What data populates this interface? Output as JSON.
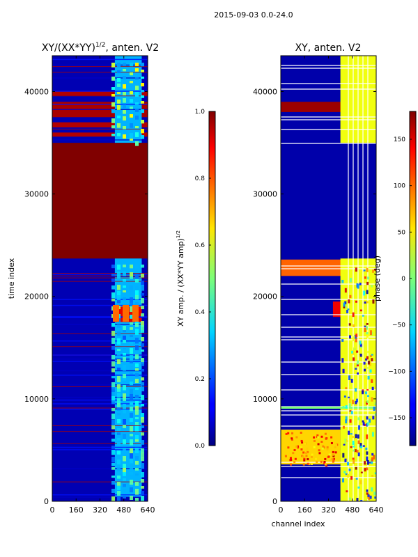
{
  "suptitle": "2015-09-03 0.0-24.0",
  "chart_data": [
    {
      "type": "heatmap",
      "title_main": "XY/(XX*YY)",
      "title_exp": "1/2",
      "title_tail": ", anten. V2",
      "ylabel": "time index",
      "xlabel": "",
      "xlim": [
        0,
        640
      ],
      "ylim": [
        0,
        43500
      ],
      "xticks": [
        "0",
        "160",
        "320",
        "480",
        "640"
      ],
      "yticks": [
        "0",
        "10000",
        "20000",
        "30000",
        "40000"
      ],
      "xtick_values": [
        0,
        160,
        320,
        480,
        640
      ],
      "ytick_values": [
        0,
        10000,
        20000,
        30000,
        40000
      ],
      "colorbar": {
        "label_main": "XY amp. / (XX*YY amp)",
        "label_exp": "1/2",
        "range": [
          0.0,
          1.0
        ],
        "ticks": [
          "0.0",
          "0.2",
          "0.4",
          "0.6",
          "0.8",
          "1.0"
        ],
        "tick_values": [
          0.0,
          0.2,
          0.4,
          0.6,
          0.8,
          1.0
        ]
      },
      "regions": [
        {
          "t0": 0,
          "t1": 23700,
          "c0": 0,
          "c1": 640,
          "value": 0.05
        },
        {
          "t0": 23700,
          "t1": 35000,
          "c0": 0,
          "c1": 640,
          "value": 1.0
        },
        {
          "t0": 35000,
          "t1": 43500,
          "c0": 0,
          "c1": 640,
          "value": 0.05
        },
        {
          "t0": 37500,
          "t1": 39000,
          "c0": 0,
          "c1": 640,
          "value": 0.96
        },
        {
          "t0": 36500,
          "t1": 37000,
          "c0": 0,
          "c1": 640,
          "value": 0.95
        },
        {
          "t0": 35600,
          "t1": 36000,
          "c0": 0,
          "c1": 640,
          "value": 0.95
        },
        {
          "t0": 39600,
          "t1": 40000,
          "c0": 0,
          "c1": 640,
          "value": 0.95
        },
        {
          "t0": 400,
          "t1": 23700,
          "c0": 420,
          "c1": 600,
          "value": 0.3
        },
        {
          "t0": 35000,
          "t1": 43500,
          "c0": 420,
          "c1": 600,
          "value": 0.3
        },
        {
          "t0": 17500,
          "t1": 19000,
          "c0": 420,
          "c1": 600,
          "value": 0.9
        }
      ]
    },
    {
      "type": "heatmap",
      "title": "XY, anten. V2",
      "ylabel": "",
      "xlabel": "channel index",
      "xlim": [
        0,
        640
      ],
      "ylim": [
        0,
        43500
      ],
      "xticks": [
        "0",
        "160",
        "320",
        "480",
        "640"
      ],
      "yticks": [
        "0",
        "10000",
        "20000",
        "30000",
        "40000"
      ],
      "xtick_values": [
        0,
        160,
        320,
        480,
        640
      ],
      "ytick_values": [
        0,
        10000,
        20000,
        30000,
        40000
      ],
      "colorbar": {
        "label": "phase (deg)",
        "range": [
          -180,
          180
        ],
        "ticks": [
          "−150",
          "−100",
          "−50",
          "0",
          "50",
          "100",
          "150"
        ],
        "tick_values": [
          -150,
          -100,
          -50,
          0,
          50,
          100,
          150
        ]
      },
      "regions": [
        {
          "t0": 0,
          "t1": 43500,
          "c0": 0,
          "c1": 640,
          "value": -165
        },
        {
          "t0": 3600,
          "t1": 7000,
          "c0": 0,
          "c1": 400,
          "value": 60
        },
        {
          "t0": 38000,
          "t1": 39000,
          "c0": 0,
          "c1": 640,
          "value": 170
        },
        {
          "t0": 18000,
          "t1": 19500,
          "c0": 350,
          "c1": 640,
          "value": 140
        },
        {
          "t0": 22000,
          "t1": 23600,
          "c0": 0,
          "c1": 640,
          "value": 100
        },
        {
          "t0": 0,
          "t1": 23700,
          "c0": 400,
          "c1": 640,
          "value": 40
        },
        {
          "t0": 35000,
          "t1": 43500,
          "c0": 400,
          "c1": 640,
          "value": 40
        }
      ]
    }
  ]
}
